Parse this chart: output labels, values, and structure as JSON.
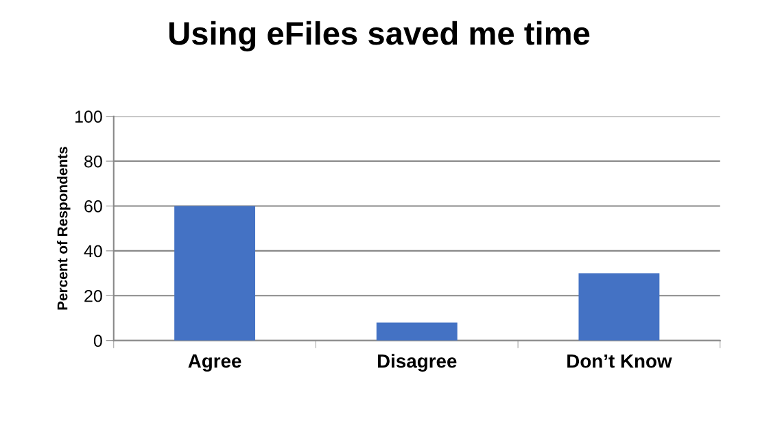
{
  "chart_data": {
    "type": "bar",
    "title": "Using eFiles saved me time",
    "ylabel": "Percent of Respondents",
    "categories": [
      "Agree",
      "Disagree",
      "Don’t Know"
    ],
    "values": [
      60,
      8,
      30
    ],
    "color": "#4472c4",
    "ylim": [
      0,
      100
    ],
    "yticks": [
      0,
      20,
      40,
      60,
      80,
      100
    ],
    "grid": "y"
  }
}
